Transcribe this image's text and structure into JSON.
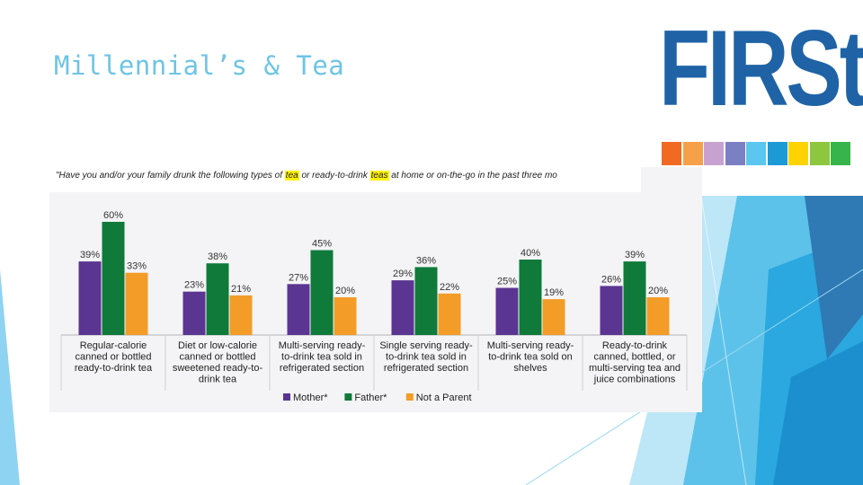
{
  "slide": {
    "title": "Millennial’s & Tea",
    "logo_text": "FIRSt",
    "logo_stripe_colors": [
      "#f26a21",
      "#f7a04a",
      "#c7a2d0",
      "#7b7fc4",
      "#5bc6ef",
      "#1c9ad6",
      "#ffd200",
      "#8dc63f",
      "#37b54a"
    ]
  },
  "question": {
    "part1": "\"Have you and/or your family drunk the following types of ",
    "hl1": "tea",
    "part2": " or ready-to-drink ",
    "hl2": "teas",
    "part3": " at home or on-the-go in the past three mo"
  },
  "chart_data": {
    "type": "bar",
    "categories": [
      [
        "Regular-calorie",
        "canned or bottled",
        "ready-to-drink tea"
      ],
      [
        "Diet or low-calorie",
        "canned or bottled",
        "sweetened ready-to-",
        "drink tea"
      ],
      [
        "Multi-serving ready-",
        "to-drink tea sold in",
        "refrigerated section"
      ],
      [
        "Single serving ready-",
        "to-drink tea sold in",
        "refrigerated section"
      ],
      [
        "Multi-serving ready-",
        "to-drink tea sold on",
        "shelves"
      ],
      [
        "Ready-to-drink",
        "canned, bottled, or",
        "multi-serving tea and",
        "juice combinations"
      ]
    ],
    "series": [
      {
        "name": "Mother*",
        "color": "#5b3592",
        "values": [
          39,
          23,
          27,
          29,
          25,
          26
        ],
        "labels": [
          "39%",
          "23%",
          "27%",
          "29%",
          "25%",
          "26%"
        ]
      },
      {
        "name": "Father*",
        "color": "#0f7a3a",
        "values": [
          60,
          38,
          45,
          36,
          40,
          39
        ],
        "labels": [
          "60%",
          "38%",
          "45%",
          "36%",
          "40%",
          "39%"
        ]
      },
      {
        "name": "Not a Parent",
        "color": "#f39c28",
        "values": [
          33,
          21,
          20,
          22,
          19,
          20
        ],
        "labels": [
          "33%",
          "21%",
          "20%",
          "22%",
          "19%",
          "20%"
        ]
      }
    ],
    "ylim": [
      0,
      70
    ],
    "legend_position": "bottom-center"
  }
}
